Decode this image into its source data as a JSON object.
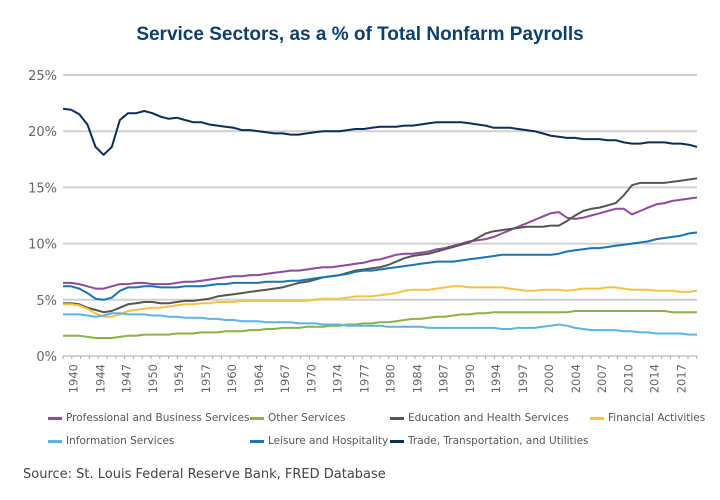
{
  "chart_data": {
    "type": "line",
    "title": "Service Sectors, as a % of Total Nonfarm Payrolls",
    "xlabel": "",
    "ylabel": "",
    "ylim": [
      0,
      25
    ],
    "xlim": [
      1939,
      2017
    ],
    "grid": true,
    "y_ticks": [
      "0%",
      "5%",
      "10%",
      "15%",
      "20%",
      "25%"
    ],
    "y_tick_values": [
      0,
      5,
      10,
      15,
      20,
      25
    ],
    "x_ticks": [
      "1940",
      "1944",
      "1947",
      "1950",
      "1954",
      "1957",
      "1960",
      "1964",
      "1967",
      "1970",
      "1974",
      "1977",
      "1980",
      "1984",
      "1987",
      "1990",
      "1994",
      "1997",
      "2000",
      "2004",
      "2007",
      "2010",
      "2014",
      "2017"
    ],
    "x_tick_values": [
      1940.3,
      1943.6,
      1946.8,
      1950.1,
      1953.3,
      1956.6,
      1959.8,
      1963.1,
      1966.3,
      1969.6,
      1972.8,
      1976.1,
      1979.3,
      1982.6,
      1985.8,
      1989.1,
      1992.3,
      1995.6,
      1998.8,
      2002.1,
      2005.3,
      2008.6,
      2011.8,
      2015.1
    ],
    "x": [
      1939,
      1940,
      1941,
      1942,
      1943,
      1944,
      1945,
      1946,
      1947,
      1948,
      1949,
      1950,
      1951,
      1952,
      1953,
      1954,
      1955,
      1956,
      1957,
      1958,
      1959,
      1960,
      1961,
      1962,
      1963,
      1964,
      1965,
      1966,
      1967,
      1968,
      1969,
      1970,
      1971,
      1972,
      1973,
      1974,
      1975,
      1976,
      1977,
      1978,
      1979,
      1980,
      1981,
      1982,
      1983,
      1984,
      1985,
      1986,
      1987,
      1988,
      1989,
      1990,
      1991,
      1992,
      1993,
      1994,
      1995,
      1996,
      1997,
      1998,
      1999,
      2000,
      2001,
      2002,
      2003,
      2004,
      2005,
      2006,
      2007,
      2008,
      2009,
      2010,
      2011,
      2012,
      2013,
      2014,
      2015,
      2016,
      2017
    ],
    "series": [
      {
        "name": "Professional and Business Services",
        "color": "#8e4a9e",
        "values": [
          6.5,
          6.5,
          6.4,
          6.2,
          6.0,
          6.0,
          6.2,
          6.4,
          6.4,
          6.5,
          6.5,
          6.4,
          6.4,
          6.4,
          6.5,
          6.6,
          6.6,
          6.7,
          6.8,
          6.9,
          7.0,
          7.1,
          7.1,
          7.2,
          7.2,
          7.3,
          7.4,
          7.5,
          7.6,
          7.6,
          7.7,
          7.8,
          7.9,
          7.9,
          8.0,
          8.1,
          8.2,
          8.3,
          8.5,
          8.6,
          8.8,
          9.0,
          9.1,
          9.1,
          9.2,
          9.3,
          9.5,
          9.6,
          9.8,
          10.0,
          10.2,
          10.3,
          10.4,
          10.6,
          10.9,
          11.2,
          11.5,
          11.8,
          12.1,
          12.4,
          12.7,
          12.8,
          12.3,
          12.2,
          12.3,
          12.5,
          12.7,
          12.9,
          13.1,
          13.1,
          12.6,
          12.9,
          13.2,
          13.5,
          13.6,
          13.8,
          13.9,
          14.0,
          14.1
        ]
      },
      {
        "name": "Other Services",
        "color": "#8cb243",
        "values": [
          1.8,
          1.8,
          1.8,
          1.7,
          1.6,
          1.6,
          1.6,
          1.7,
          1.8,
          1.8,
          1.9,
          1.9,
          1.9,
          1.9,
          2.0,
          2.0,
          2.0,
          2.1,
          2.1,
          2.1,
          2.2,
          2.2,
          2.2,
          2.3,
          2.3,
          2.4,
          2.4,
          2.5,
          2.5,
          2.5,
          2.6,
          2.6,
          2.6,
          2.7,
          2.7,
          2.8,
          2.8,
          2.9,
          2.9,
          3.0,
          3.0,
          3.1,
          3.2,
          3.3,
          3.3,
          3.4,
          3.5,
          3.5,
          3.6,
          3.7,
          3.7,
          3.8,
          3.8,
          3.9,
          3.9,
          3.9,
          3.9,
          3.9,
          3.9,
          3.9,
          3.9,
          3.9,
          3.9,
          4.0,
          4.0,
          4.0,
          4.0,
          4.0,
          4.0,
          4.0,
          4.0,
          4.0,
          4.0,
          4.0,
          4.0,
          3.9,
          3.9,
          3.9,
          3.9
        ]
      },
      {
        "name": "Education and Health Services",
        "color": "#555555",
        "values": [
          4.7,
          4.7,
          4.6,
          4.3,
          4.1,
          3.9,
          4.0,
          4.3,
          4.6,
          4.7,
          4.8,
          4.8,
          4.7,
          4.7,
          4.8,
          4.9,
          4.9,
          5.0,
          5.1,
          5.3,
          5.4,
          5.5,
          5.6,
          5.7,
          5.8,
          5.9,
          6.0,
          6.1,
          6.3,
          6.5,
          6.6,
          6.8,
          7.0,
          7.1,
          7.2,
          7.4,
          7.6,
          7.7,
          7.8,
          7.9,
          8.1,
          8.4,
          8.7,
          8.9,
          9.0,
          9.1,
          9.3,
          9.5,
          9.7,
          9.9,
          10.1,
          10.5,
          10.9,
          11.1,
          11.2,
          11.3,
          11.4,
          11.5,
          11.5,
          11.5,
          11.6,
          11.6,
          12.0,
          12.5,
          12.9,
          13.1,
          13.2,
          13.4,
          13.6,
          14.3,
          15.2,
          15.4,
          15.4,
          15.4,
          15.4,
          15.5,
          15.6,
          15.7,
          15.8
        ]
      },
      {
        "name": "Financial Activities",
        "color": "#f5c342",
        "values": [
          4.6,
          4.6,
          4.5,
          4.2,
          3.8,
          3.5,
          3.5,
          3.7,
          4.0,
          4.1,
          4.2,
          4.3,
          4.3,
          4.4,
          4.5,
          4.6,
          4.6,
          4.7,
          4.7,
          4.8,
          4.8,
          4.8,
          4.9,
          4.9,
          4.9,
          4.9,
          4.9,
          4.9,
          4.9,
          4.9,
          4.9,
          5.0,
          5.1,
          5.1,
          5.1,
          5.2,
          5.3,
          5.3,
          5.3,
          5.4,
          5.5,
          5.6,
          5.8,
          5.9,
          5.9,
          5.9,
          6.0,
          6.1,
          6.2,
          6.2,
          6.1,
          6.1,
          6.1,
          6.1,
          6.1,
          6.0,
          5.9,
          5.8,
          5.8,
          5.9,
          5.9,
          5.9,
          5.8,
          5.9,
          6.0,
          6.0,
          6.0,
          6.1,
          6.1,
          6.0,
          5.9,
          5.9,
          5.9,
          5.8,
          5.8,
          5.8,
          5.7,
          5.7,
          5.8
        ]
      },
      {
        "name": "Information Services",
        "color": "#5ab4e5",
        "values": [
          3.7,
          3.7,
          3.7,
          3.6,
          3.5,
          3.6,
          3.8,
          3.8,
          3.7,
          3.7,
          3.7,
          3.6,
          3.6,
          3.5,
          3.5,
          3.4,
          3.4,
          3.4,
          3.3,
          3.3,
          3.2,
          3.2,
          3.1,
          3.1,
          3.1,
          3.0,
          3.0,
          3.0,
          3.0,
          2.9,
          2.9,
          2.9,
          2.8,
          2.8,
          2.8,
          2.7,
          2.7,
          2.7,
          2.7,
          2.7,
          2.6,
          2.6,
          2.6,
          2.6,
          2.6,
          2.5,
          2.5,
          2.5,
          2.5,
          2.5,
          2.5,
          2.5,
          2.5,
          2.5,
          2.4,
          2.4,
          2.5,
          2.5,
          2.5,
          2.6,
          2.7,
          2.8,
          2.7,
          2.5,
          2.4,
          2.3,
          2.3,
          2.3,
          2.3,
          2.2,
          2.2,
          2.1,
          2.1,
          2.0,
          2.0,
          2.0,
          2.0,
          1.9,
          1.9
        ]
      },
      {
        "name": "Leisure and Hospitality",
        "color": "#1a75b6",
        "values": [
          6.2,
          6.2,
          6.0,
          5.6,
          5.1,
          5.0,
          5.2,
          5.8,
          6.1,
          6.1,
          6.2,
          6.2,
          6.1,
          6.1,
          6.1,
          6.2,
          6.2,
          6.2,
          6.3,
          6.4,
          6.4,
          6.5,
          6.5,
          6.5,
          6.5,
          6.6,
          6.6,
          6.6,
          6.7,
          6.7,
          6.8,
          6.9,
          7.0,
          7.1,
          7.2,
          7.3,
          7.5,
          7.6,
          7.6,
          7.7,
          7.8,
          7.9,
          8.0,
          8.1,
          8.2,
          8.3,
          8.4,
          8.4,
          8.4,
          8.5,
          8.6,
          8.7,
          8.8,
          8.9,
          9.0,
          9.0,
          9.0,
          9.0,
          9.0,
          9.0,
          9.0,
          9.1,
          9.3,
          9.4,
          9.5,
          9.6,
          9.6,
          9.7,
          9.8,
          9.9,
          10.0,
          10.1,
          10.2,
          10.4,
          10.5,
          10.6,
          10.7,
          10.9,
          11.0
        ]
      },
      {
        "name": "Trade, Transportation, and Utilities",
        "color": "#0b2e59",
        "values": [
          22.0,
          21.9,
          21.5,
          20.6,
          18.6,
          17.9,
          18.6,
          21.0,
          21.6,
          21.6,
          21.8,
          21.6,
          21.3,
          21.1,
          21.2,
          21.0,
          20.8,
          20.8,
          20.6,
          20.5,
          20.4,
          20.3,
          20.1,
          20.1,
          20.0,
          19.9,
          19.8,
          19.8,
          19.7,
          19.7,
          19.8,
          19.9,
          20.0,
          20.0,
          20.0,
          20.1,
          20.2,
          20.2,
          20.3,
          20.4,
          20.4,
          20.4,
          20.5,
          20.5,
          20.6,
          20.7,
          20.8,
          20.8,
          20.8,
          20.8,
          20.7,
          20.6,
          20.5,
          20.3,
          20.3,
          20.3,
          20.2,
          20.1,
          20.0,
          19.8,
          19.6,
          19.5,
          19.4,
          19.4,
          19.3,
          19.3,
          19.3,
          19.2,
          19.2,
          19.0,
          18.9,
          18.9,
          19.0,
          19.0,
          19.0,
          18.9,
          18.9,
          18.8,
          18.6
        ]
      }
    ]
  },
  "legend": [
    {
      "label": "Professional and Business Services",
      "color": "#8e4a9e"
    },
    {
      "label": "Other Services",
      "color": "#8cb243"
    },
    {
      "label": "Education and Health Services",
      "color": "#555555"
    },
    {
      "label": "Financial Activities",
      "color": "#f5c342"
    },
    {
      "label": "Information Services",
      "color": "#5ab4e5"
    },
    {
      "label": "Leisure and Hospitality",
      "color": "#1a75b6"
    },
    {
      "label": "Trade, Transportation, and Utilities",
      "color": "#0b2e59"
    }
  ],
  "source": "Source: St. Louis Federal Reserve Bank, FRED Database"
}
